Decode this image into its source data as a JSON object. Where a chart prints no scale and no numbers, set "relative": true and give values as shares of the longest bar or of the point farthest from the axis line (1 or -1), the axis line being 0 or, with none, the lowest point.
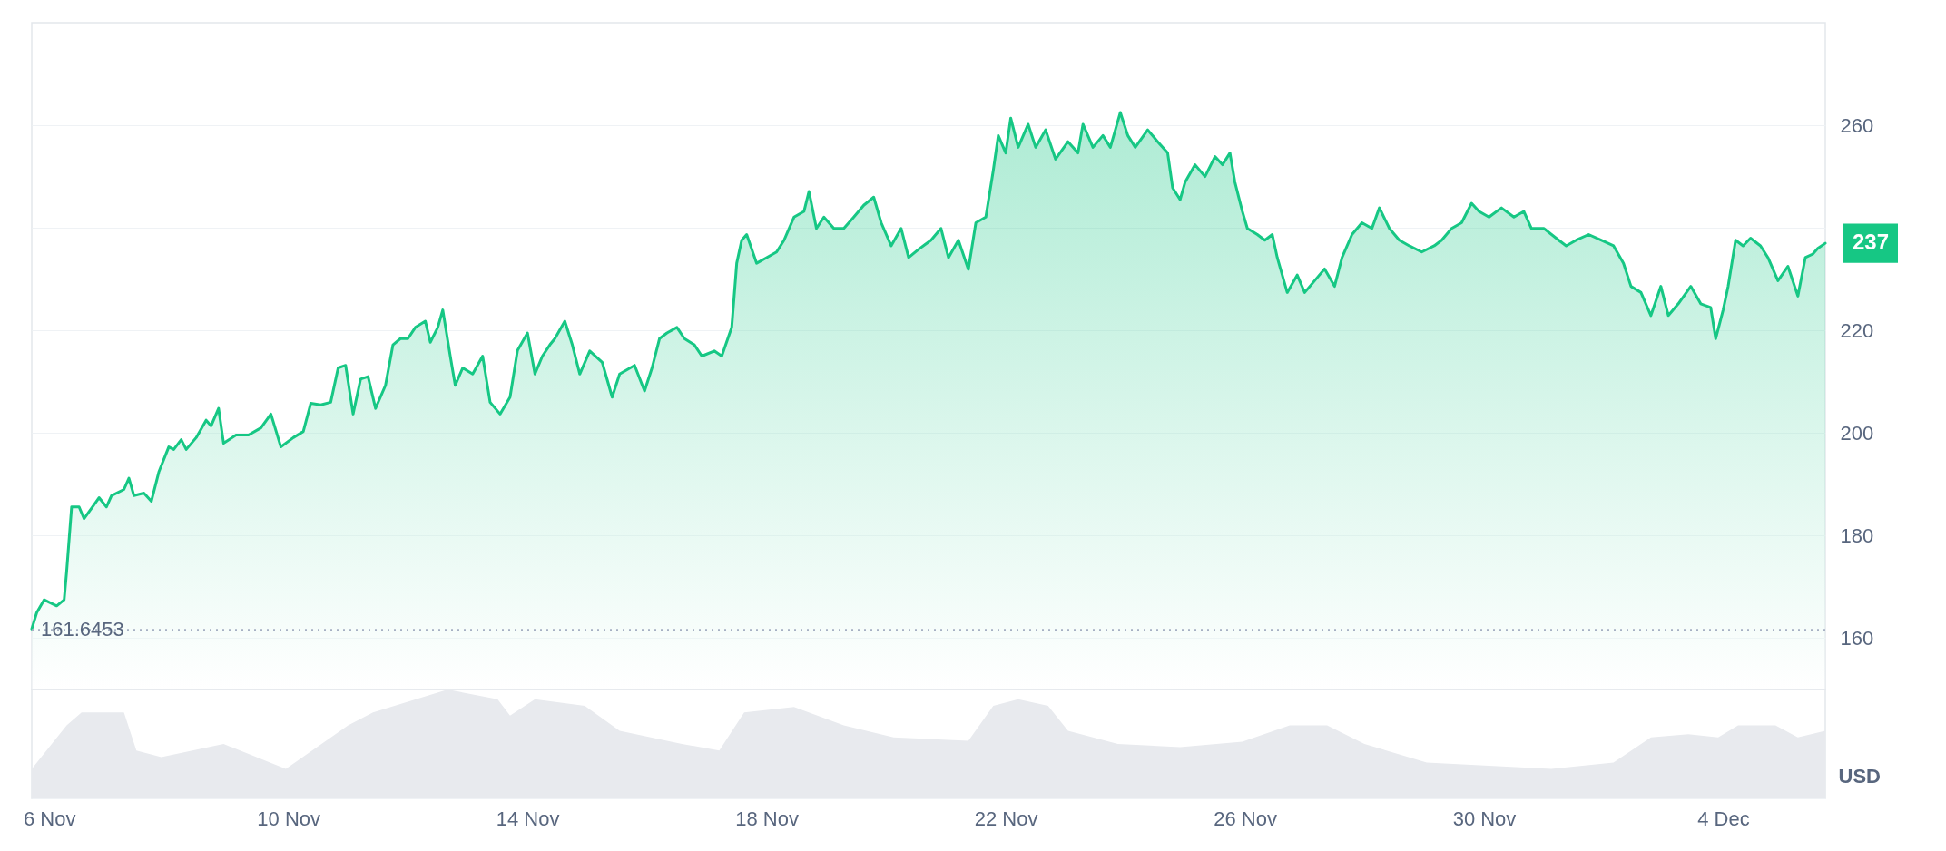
{
  "chart_data": [
    {
      "type": "area",
      "ylabel": "USD",
      "grid": "y",
      "tick_labels": "y",
      "xlim": [
        "--11-05T17:00",
        "--12-05T17:00"
      ],
      "ylim": [
        150,
        280
      ],
      "yticks": [
        160,
        180,
        200,
        220,
        {
          "value": 240,
          "label": null
        },
        260
      ],
      "x": [
        "--11-05T17:00",
        "--11-05T19:00",
        "--11-05T22:00",
        "--11-06T00:00",
        "--11-06T03:00",
        "--11-06T06:00",
        "--11-06T07:00",
        "--11-06T09:00",
        "--11-06T12:00",
        "--11-06T14:00",
        "--11-06T18:00",
        "--11-06T20:00",
        "--11-06T23:00",
        "--11-07T01:00",
        "--11-07T06:00",
        "--11-07T08:00",
        "--11-07T10:00",
        "--11-07T14:00",
        "--11-07T17:00",
        "--11-07T20:00",
        "--11-08T00:00",
        "--11-08T02:00",
        "--11-08T05:00",
        "--11-08T07:00",
        "--11-08T11:00",
        "--11-08T15:00",
        "--11-08T17:00",
        "--11-08T20:00",
        "--11-08T22:00",
        "--11-09T03:00",
        "--11-09T08:00",
        "--11-09T13:00",
        "--11-09T17:00",
        "--11-09T21:00",
        "--11-10T02:00",
        "--11-10T06:00",
        "--11-10T09:00",
        "--11-10T13:00",
        "--11-10T17:00",
        "--11-10T20:00",
        "--11-10T23:00",
        "--11-11T02:00",
        "--11-11T05:00",
        "--11-11T08:00",
        "--11-11T11:00",
        "--11-11T15:00",
        "--11-11T18:00",
        "--11-11T21:00",
        "--11-12T00:00",
        "--11-12T03:00",
        "--11-12T07:00",
        "--11-12T09:00",
        "--11-12T12:00",
        "--11-12T14:00",
        "--11-12T17:00",
        "--11-12T19:00",
        "--11-12T22:00",
        "--11-13T02:00",
        "--11-13T06:00",
        "--11-13T09:00",
        "--11-13T13:00",
        "--11-13T17:00",
        "--11-13T20:00",
        "--11-14T00:00",
        "--11-14T03:00",
        "--11-14T06:00",
        "--11-14T09:00",
        "--11-14T11:00",
        "--11-14T15:00",
        "--11-14T18:00",
        "--11-14T21:00",
        "--11-15T01:00",
        "--11-15T06:00",
        "--11-15T10:00",
        "--11-15T13:00",
        "--11-15T19:00",
        "--11-15T23:00",
        "--11-16T02:00",
        "--11-16T05:00",
        "--11-16T08:00",
        "--11-16T12:00",
        "--11-16T15:00",
        "--11-16T19:00",
        "--11-16T22:00",
        "--11-17T03:00",
        "--11-17T06:00",
        "--11-17T10:00",
        "--11-17T12:00",
        "--11-17T14:00",
        "--11-17T16:00",
        "--11-17T20:00",
        "--11-18T00:00",
        "--11-18T04:00",
        "--11-18T07:00",
        "--11-18T11:00",
        "--11-18T15:00",
        "--11-18T17:00",
        "--11-18T20:00",
        "--11-18T23:00",
        "--11-19T03:00",
        "--11-19T07:00",
        "--11-19T11:00",
        "--11-19T15:00",
        "--11-19T19:00",
        "--11-19T22:00",
        "--11-20T02:00",
        "--11-20T06:00",
        "--11-20T09:00",
        "--11-20T13:00",
        "--11-20T18:00",
        "--11-20T22:00",
        "--11-21T01:00",
        "--11-21T05:00",
        "--11-21T09:00",
        "--11-21T12:00",
        "--11-21T16:00",
        "--11-21T19:00",
        "--11-21T21:00",
        "--11-22T00:00",
        "--11-22T02:00",
        "--11-22T05:00",
        "--11-22T09:00",
        "--11-22T12:00",
        "--11-22T16:00",
        "--11-22T20:00",
        "--11-23T01:00",
        "--11-23T05:00",
        "--11-23T07:00",
        "--11-23T11:00",
        "--11-23T15:00",
        "--11-23T18:00",
        "--11-23T22:00",
        "--11-24T01:00",
        "--11-24T04:00",
        "--11-24T09:00",
        "--11-24T13:00",
        "--11-24T17:00",
        "--11-24T19:00",
        "--11-24T22:00",
        "--11-25T00:00",
        "--11-25T04:00",
        "--11-25T08:00",
        "--11-25T12:00",
        "--11-25T15:00",
        "--11-25T18:00",
        "--11-25T20:00",
        "--11-25T23:00",
        "--11-26T01:00",
        "--11-26T05:00",
        "--11-26T08:00",
        "--11-26T11:00",
        "--11-26T13:00",
        "--11-26T17:00",
        "--11-26T21:00",
        "--11-27T00:00",
        "--11-27T04:00",
        "--11-27T08:00",
        "--11-27T12:00",
        "--11-27T15:00",
        "--11-27T19:00",
        "--11-27T23:00",
        "--11-28T03:00",
        "--11-28T06:00",
        "--11-28T10:00",
        "--11-28T14:00",
        "--11-28T18:00",
        "--11-28T23:00",
        "--11-29T04:00",
        "--11-29T07:00",
        "--11-29T11:00",
        "--11-29T15:00",
        "--11-29T19:00",
        "--11-29T22:00",
        "--11-30T02:00",
        "--11-30T07:00",
        "--11-30T12:00",
        "--11-30T16:00",
        "--11-30T19:00",
        "--12-01T00:00",
        "--12-01T06:00",
        "--12-01T09:00",
        "--12-01T13:00",
        "--12-01T18:00",
        "--12-01T23:00",
        "--12-02T04:00",
        "--12-02T08:00",
        "--12-02T11:00",
        "--12-02T15:00",
        "--12-02T19:00",
        "--12-02T23:00",
        "--12-03T02:00",
        "--12-03T06:00",
        "--12-03T11:00",
        "--12-03T15:00",
        "--12-03T19:00",
        "--12-03T21:00",
        "--12-04T00:00",
        "--12-04T02:00",
        "--12-04T05:00",
        "--12-04T08:00",
        "--12-04T11:00",
        "--12-04T15:00",
        "--12-04T18:00",
        "--12-04T22:00",
        "--12-05T02:00",
        "--12-05T06:00",
        "--12-05T09:00",
        "--12-05T12:00",
        "--12-05T14:00",
        "--12-05T17:00"
      ],
      "xticks": [
        {
          "value": "--11-06",
          "label": "6 Nov"
        },
        {
          "value": "--11-10",
          "label": "10 Nov"
        },
        {
          "value": "--11-14",
          "label": "14 Nov"
        },
        {
          "value": "--11-18",
          "label": "18 Nov"
        },
        {
          "value": "--11-22",
          "label": "22 Nov"
        },
        {
          "value": "--11-26",
          "label": "26 Nov"
        },
        {
          "value": "--11-30",
          "label": "30 Nov"
        },
        {
          "value": "--12-04",
          "label": "4 Dec"
        }
      ],
      "series": [
        {
          "color": "#16c784",
          "values": [
            161.8,
            165,
            167.5,
            167,
            166.3,
            167.5,
            173,
            185.6,
            185.6,
            183.3,
            186,
            187.4,
            185.6,
            187.8,
            189,
            191.2,
            187.8,
            188.3,
            186.7,
            192.4,
            197.3,
            196.8,
            198.7,
            196.8,
            199.1,
            202.5,
            201.4,
            204.8,
            198,
            199.6,
            199.6,
            201,
            203.7,
            197.3,
            199.1,
            200.3,
            205.8,
            205.5,
            206,
            212.7,
            213.2,
            203.7,
            210.5,
            211,
            204.8,
            209.3,
            217.2,
            218.4,
            218.4,
            220.6,
            221.8,
            217.7,
            220.6,
            224,
            215,
            209.3,
            212.7,
            211.5,
            215,
            206,
            203.7,
            207,
            216.1,
            219.5,
            211.5,
            215,
            217.2,
            218.4,
            221.8,
            217.2,
            211.5,
            216,
            213.8,
            207,
            211.5,
            213.2,
            208.2,
            212.7,
            218.4,
            219.5,
            220.6,
            218.4,
            217.2,
            215,
            216,
            215,
            220.6,
            233.1,
            237.6,
            238.7,
            233.1,
            234.2,
            235.3,
            237.6,
            242.1,
            243.2,
            247.1,
            239.9,
            242.1,
            239.9,
            239.9,
            242.1,
            244.4,
            246,
            241,
            236.5,
            239.9,
            234.2,
            235.8,
            237.6,
            239.9,
            234.2,
            237.6,
            231.9,
            241,
            242.1,
            251.2,
            258,
            254.6,
            261.4,
            255.7,
            260.2,
            255.7,
            259.1,
            253.4,
            256.8,
            254.6,
            260.2,
            255.7,
            258,
            255.7,
            262.5,
            258,
            255.7,
            259.1,
            256.8,
            254.6,
            247.8,
            245.5,
            248.9,
            252.3,
            250,
            253.9,
            252.3,
            254.6,
            248.9,
            243.2,
            239.9,
            238.7,
            237.6,
            238.7,
            234.2,
            227.4,
            230.8,
            227.4,
            229.7,
            232,
            228.6,
            234.2,
            238.7,
            241,
            239.9,
            243.9,
            239.9,
            237.6,
            236.5,
            235.3,
            236.5,
            237.6,
            239.9,
            241,
            244.8,
            243.2,
            242.1,
            243.9,
            242.1,
            243.2,
            239.9,
            239.9,
            237.6,
            236.5,
            237.6,
            238.7,
            237.6,
            236.5,
            233.1,
            228.6,
            227.4,
            222.9,
            228.6,
            222.9,
            225.2,
            228.6,
            225.2,
            224.5,
            218.4,
            224,
            228.6,
            237.6,
            236.5,
            238,
            236.5,
            234.2,
            229.7,
            232.5,
            226.7,
            234.2,
            234.9,
            236,
            237
          ]
        }
      ],
      "ref_lines": [
        {
          "axis": "y",
          "value": 161.6453,
          "label": "161.6453",
          "line_style": "dotted"
        }
      ],
      "annotations": [
        {
          "text": "237",
          "x": "--12-05T17:00",
          "y": 237
        }
      ]
    },
    {
      "type": "area",
      "relative": true,
      "tick_labels": "x",
      "xlim": [
        "--11-05T17:00",
        "--12-05T17:00"
      ],
      "xticks": [
        {
          "value": "--11-06",
          "label": "6 Nov"
        },
        {
          "value": "--11-10",
          "label": "10 Nov"
        },
        {
          "value": "--11-14",
          "label": "14 Nov"
        },
        {
          "value": "--11-18",
          "label": "18 Nov"
        },
        {
          "value": "--11-22",
          "label": "22 Nov"
        },
        {
          "value": "--11-26",
          "label": "26 Nov"
        },
        {
          "value": "--11-30",
          "label": "30 Nov"
        },
        {
          "value": "--12-04",
          "label": "4 Dec"
        }
      ],
      "x": [
        "--11-05T17:00",
        "--11-06T07:00",
        "--11-06T13:00",
        "--11-07T06:00",
        "--11-07T11:00",
        "--11-07T21:00",
        "--11-08T22:00",
        "--11-09T23:00",
        "--11-11T00:00",
        "--11-11T10:00",
        "--11-12T16:00",
        "--11-13T12:00",
        "--11-13T17:00",
        "--11-14T03:00",
        "--11-14T23:00",
        "--11-15T13:00",
        "--11-16T14:00",
        "--11-17T05:00",
        "--11-17T15:00",
        "--11-18T11:00",
        "--11-19T07:00",
        "--11-20T03:00",
        "--11-21T09:00",
        "--11-21T19:00",
        "--11-22T05:00",
        "--11-22T17:00",
        "--11-23T01:00",
        "--11-23T21:00",
        "--11-24T22:00",
        "--11-25T23:00",
        "--11-26T18:00",
        "--11-27T09:00",
        "--11-28T00:00",
        "--11-29T01:00",
        "--11-30T02:00",
        "--12-01T03:00",
        "--12-02T04:00",
        "--12-02T19:00",
        "--12-03T10:00",
        "--12-03T22:00",
        "--12-04T06:00",
        "--12-04T21:00",
        "--12-05T06:00",
        "--12-05T17:00"
      ],
      "series": [
        {
          "color": "#e8eaee",
          "values": [
            0.27,
            0.67,
            0.79,
            0.79,
            0.44,
            0.38,
            0.5,
            0.27,
            0.67,
            0.79,
            1,
            0.91,
            0.76,
            0.91,
            0.85,
            0.62,
            0.5,
            0.44,
            0.79,
            0.84,
            0.67,
            0.56,
            0.53,
            0.85,
            0.91,
            0.85,
            0.62,
            0.5,
            0.47,
            0.52,
            0.67,
            0.67,
            0.5,
            0.33,
            0.3,
            0.27,
            0.33,
            0.56,
            0.59,
            0.56,
            0.67,
            0.67,
            0.56,
            0.62
          ]
        }
      ]
    }
  ]
}
